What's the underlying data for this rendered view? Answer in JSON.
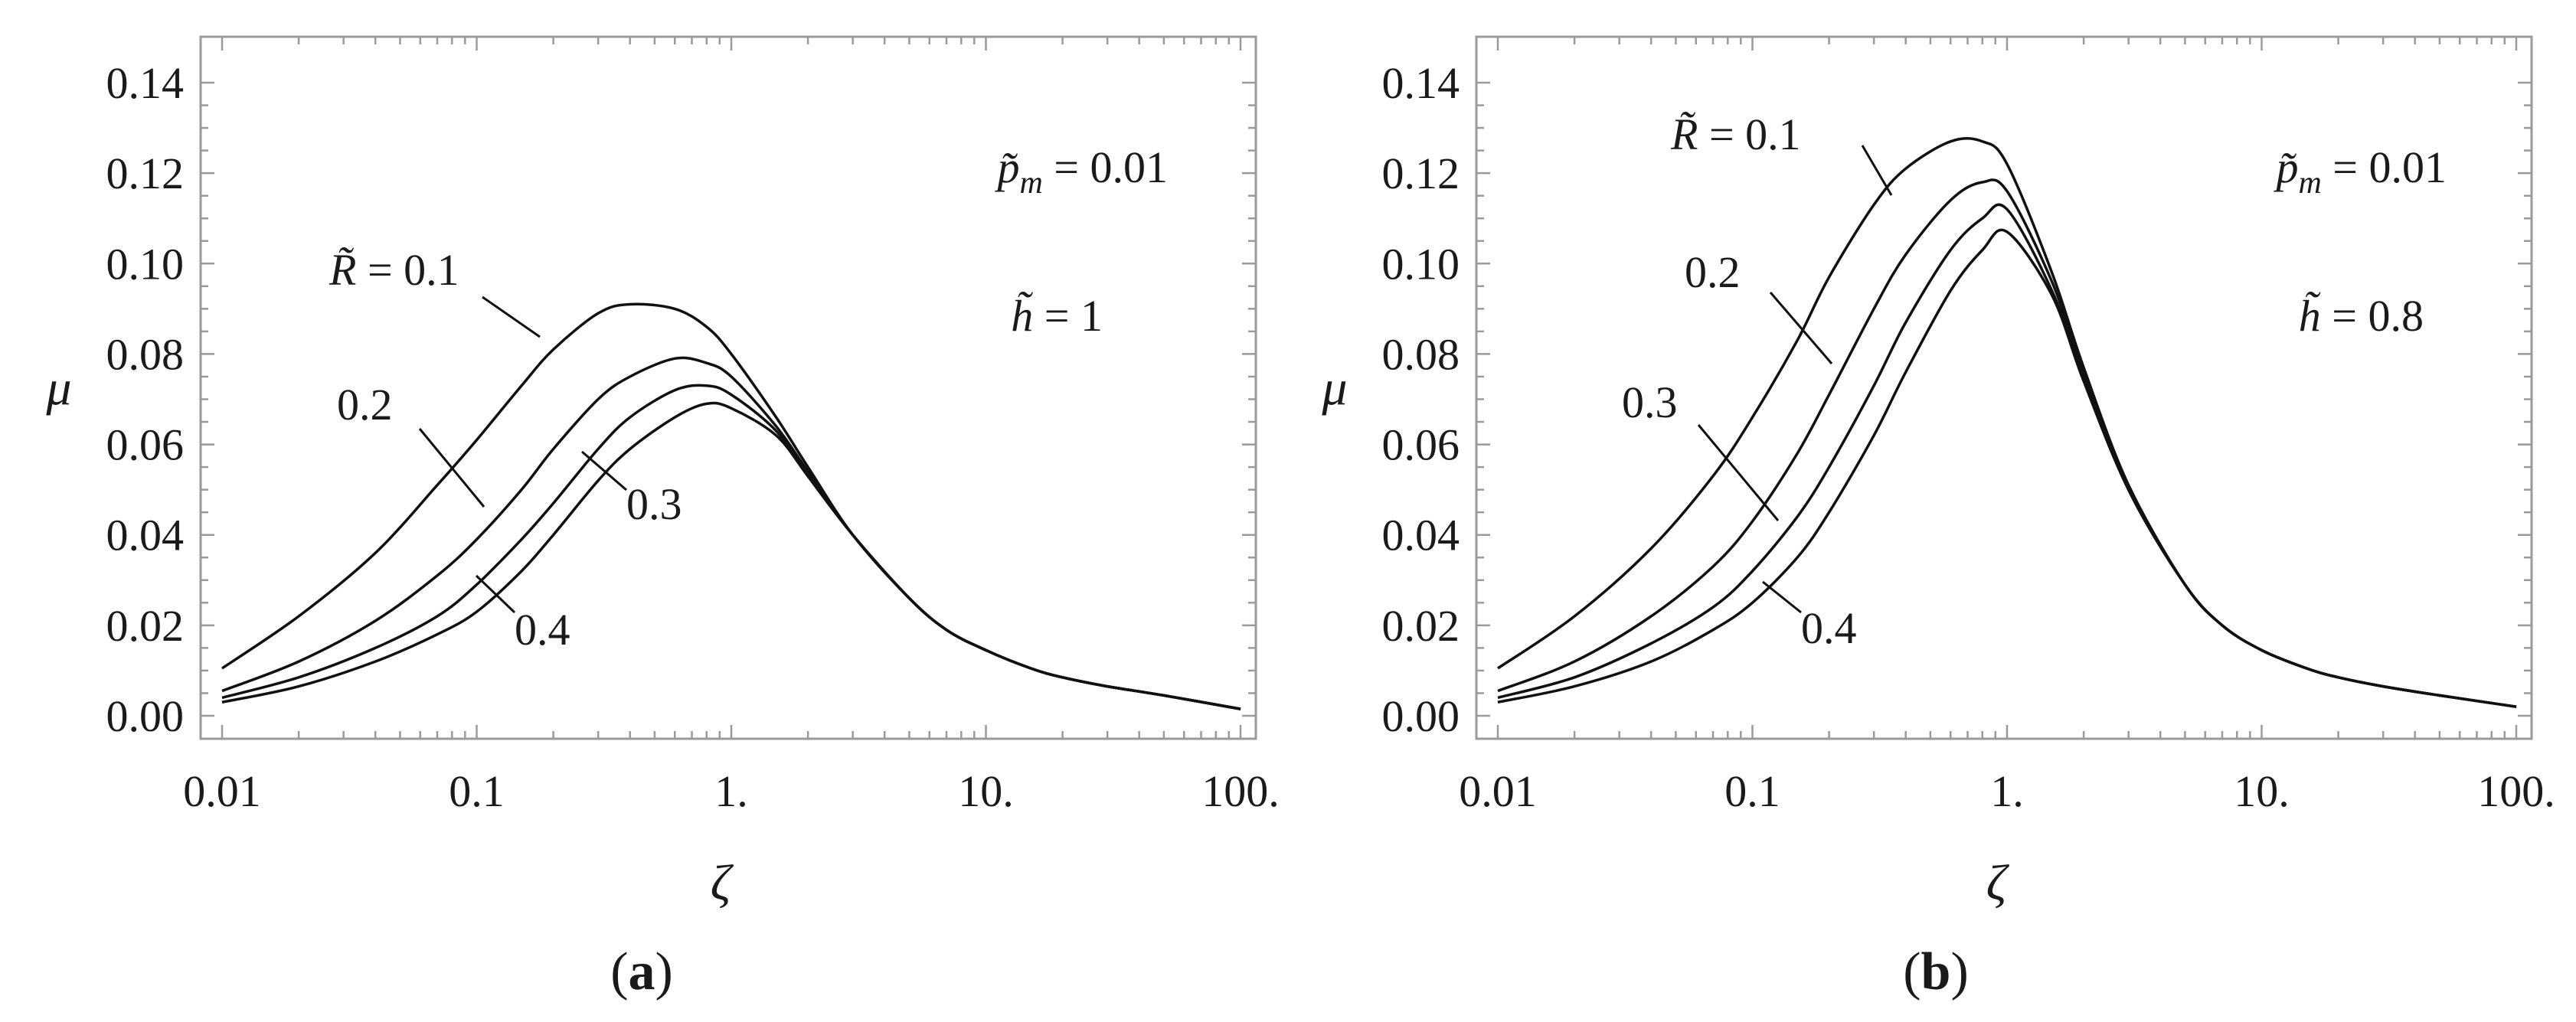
{
  "chart_data": [
    {
      "type": "line",
      "panel_label": "(a)",
      "xlabel": "ζ",
      "ylabel": "μ",
      "x_scale": "log",
      "xlim": [
        0.01,
        100
      ],
      "ylim": [
        0,
        0.14
      ],
      "x_ticks": [
        "0.01",
        "0.1",
        "1.",
        "10.",
        "100."
      ],
      "y_ticks": [
        "0.00",
        "0.02",
        "0.04",
        "0.06",
        "0.08",
        "0.10",
        "0.12",
        "0.14"
      ],
      "grid": false,
      "params": [
        "p̃_m = 0.01",
        "h̃ = 1"
      ],
      "series": [
        {
          "name": "R̃ = 0.1",
          "x": [
            0.01,
            0.02,
            0.04,
            0.07,
            0.1,
            0.15,
            0.2,
            0.3,
            0.4,
            0.6,
            0.8,
            1,
            1.5,
            2,
            3,
            5,
            7,
            10,
            15,
            20,
            30,
            50,
            100
          ],
          "y": [
            0.0105,
            0.022,
            0.036,
            0.051,
            0.061,
            0.073,
            0.081,
            0.089,
            0.091,
            0.09,
            0.086,
            0.08,
            0.066,
            0.055,
            0.04,
            0.026,
            0.019,
            0.0145,
            0.0105,
            0.0085,
            0.0065,
            0.0045,
            0.0015
          ]
        },
        {
          "name": "0.2",
          "x": [
            0.01,
            0.02,
            0.04,
            0.07,
            0.1,
            0.15,
            0.2,
            0.3,
            0.4,
            0.6,
            0.8,
            1,
            1.5,
            2,
            3,
            5,
            7,
            10,
            15,
            20,
            30,
            50,
            100
          ],
          "y": [
            0.0055,
            0.012,
            0.021,
            0.031,
            0.039,
            0.05,
            0.059,
            0.07,
            0.075,
            0.079,
            0.078,
            0.075,
            0.064,
            0.054,
            0.04,
            0.026,
            0.019,
            0.0145,
            0.0105,
            0.0085,
            0.0065,
            0.0045,
            0.0015
          ]
        },
        {
          "name": "0.3",
          "x": [
            0.01,
            0.02,
            0.04,
            0.07,
            0.1,
            0.15,
            0.2,
            0.3,
            0.4,
            0.6,
            0.8,
            1,
            1.5,
            2,
            3,
            5,
            7,
            10,
            15,
            20,
            30,
            50,
            100
          ],
          "y": [
            0.004,
            0.0085,
            0.015,
            0.022,
            0.029,
            0.039,
            0.047,
            0.059,
            0.066,
            0.072,
            0.073,
            0.071,
            0.063,
            0.053,
            0.04,
            0.026,
            0.019,
            0.0145,
            0.0105,
            0.0085,
            0.0065,
            0.0045,
            0.0015
          ]
        },
        {
          "name": "0.4",
          "x": [
            0.01,
            0.02,
            0.04,
            0.07,
            0.1,
            0.15,
            0.2,
            0.3,
            0.4,
            0.6,
            0.8,
            1,
            1.5,
            2,
            3,
            5,
            7,
            10,
            15,
            20,
            30,
            50,
            100
          ],
          "y": [
            0.003,
            0.0065,
            0.012,
            0.018,
            0.023,
            0.032,
            0.04,
            0.052,
            0.059,
            0.066,
            0.069,
            0.068,
            0.062,
            0.053,
            0.04,
            0.026,
            0.019,
            0.0145,
            0.0105,
            0.0085,
            0.0065,
            0.0045,
            0.0015
          ]
        }
      ]
    },
    {
      "type": "line",
      "panel_label": "(b)",
      "xlabel": "ζ",
      "ylabel": "μ",
      "x_scale": "log",
      "xlim": [
        0.01,
        100
      ],
      "ylim": [
        0,
        0.14
      ],
      "x_ticks": [
        "0.01",
        "0.1",
        "1.",
        "10.",
        "100."
      ],
      "y_ticks": [
        "0.00",
        "0.02",
        "0.04",
        "0.06",
        "0.08",
        "0.10",
        "0.12",
        "0.14"
      ],
      "grid": false,
      "params": [
        "p̃_m = 0.01",
        "h̃ = 0.8"
      ],
      "series": [
        {
          "name": "R̃ = 0.1",
          "x": [
            0.01,
            0.02,
            0.04,
            0.07,
            0.1,
            0.15,
            0.2,
            0.3,
            0.4,
            0.6,
            0.8,
            1,
            1.5,
            2,
            3,
            5,
            7,
            10,
            15,
            20,
            30,
            50,
            100
          ],
          "y": [
            0.0105,
            0.022,
            0.037,
            0.053,
            0.066,
            0.083,
            0.097,
            0.113,
            0.121,
            0.127,
            0.127,
            0.122,
            0.098,
            0.077,
            0.051,
            0.029,
            0.02,
            0.0145,
            0.0105,
            0.0085,
            0.0065,
            0.0045,
            0.002
          ]
        },
        {
          "name": "0.2",
          "x": [
            0.01,
            0.02,
            0.04,
            0.07,
            0.1,
            0.15,
            0.2,
            0.3,
            0.4,
            0.6,
            0.8,
            1,
            1.5,
            2,
            3,
            5,
            7,
            10,
            15,
            20,
            30,
            50,
            100
          ],
          "y": [
            0.0055,
            0.012,
            0.022,
            0.033,
            0.043,
            0.058,
            0.071,
            0.09,
            0.102,
            0.114,
            0.118,
            0.116,
            0.096,
            0.076,
            0.051,
            0.029,
            0.02,
            0.0145,
            0.0105,
            0.0085,
            0.0065,
            0.0045,
            0.002
          ]
        },
        {
          "name": "0.3",
          "x": [
            0.01,
            0.02,
            0.04,
            0.07,
            0.1,
            0.15,
            0.2,
            0.3,
            0.4,
            0.6,
            0.8,
            1,
            1.5,
            2,
            3,
            5,
            7,
            10,
            15,
            20,
            30,
            50,
            100
          ],
          "y": [
            0.004,
            0.0085,
            0.016,
            0.024,
            0.032,
            0.044,
            0.055,
            0.073,
            0.087,
            0.103,
            0.11,
            0.112,
            0.094,
            0.075,
            0.05,
            0.029,
            0.02,
            0.0145,
            0.0105,
            0.0085,
            0.0065,
            0.0045,
            0.002
          ]
        },
        {
          "name": "0.4",
          "x": [
            0.01,
            0.02,
            0.04,
            0.07,
            0.1,
            0.15,
            0.2,
            0.3,
            0.4,
            0.6,
            0.8,
            1,
            1.5,
            2,
            3,
            5,
            7,
            10,
            15,
            20,
            30,
            50,
            100
          ],
          "y": [
            0.003,
            0.0065,
            0.012,
            0.019,
            0.025,
            0.035,
            0.045,
            0.062,
            0.076,
            0.094,
            0.103,
            0.107,
            0.093,
            0.074,
            0.05,
            0.029,
            0.02,
            0.0145,
            0.0105,
            0.0085,
            0.0065,
            0.0045,
            0.002
          ]
        }
      ]
    }
  ]
}
